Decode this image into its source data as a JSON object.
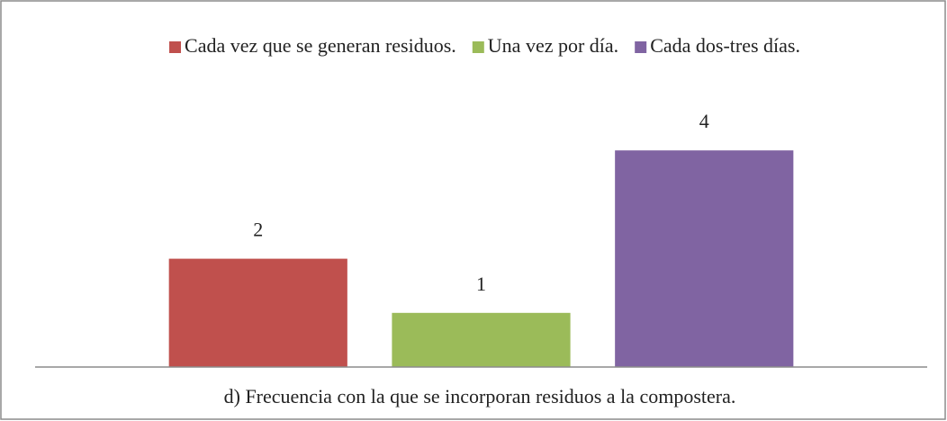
{
  "chart_data": {
    "type": "bar",
    "categories": [
      null
    ],
    "series": [
      {
        "name": "Cada vez que se generan residuos.",
        "color": "#c0504d",
        "values": [
          2
        ]
      },
      {
        "name": "Una vez por día.",
        "color": "#9bbb59",
        "values": [
          1
        ]
      },
      {
        "name": "Cada dos-tres días.",
        "color": "#8064a2",
        "values": [
          4
        ]
      }
    ],
    "xlabel": "d) Frecuencia con la que se incorporan residuos a la compostera.",
    "ylim": [
      0,
      5
    ],
    "legend": "top",
    "grid": false
  }
}
